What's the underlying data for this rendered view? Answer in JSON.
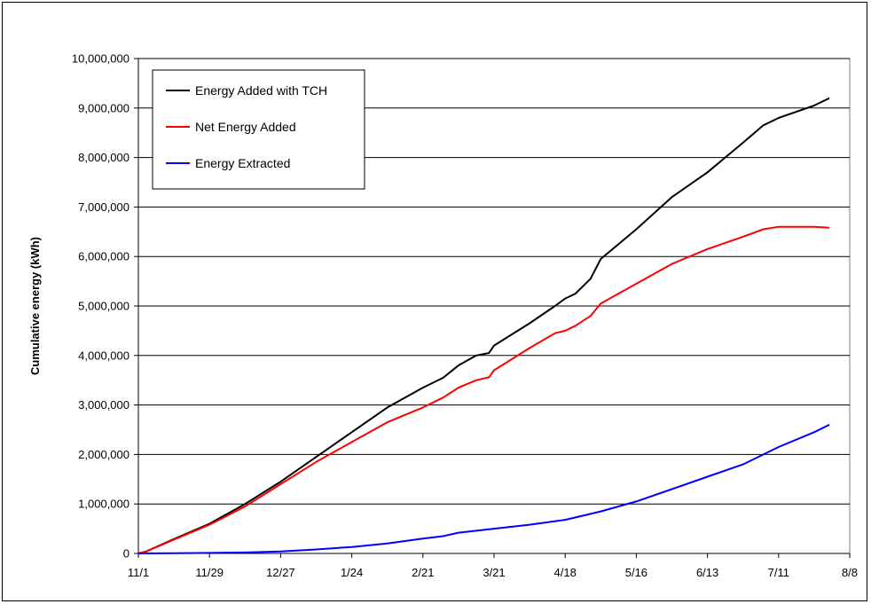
{
  "chart_data": {
    "type": "line",
    "title": "",
    "xlabel": "",
    "ylabel": "Cumulative energy (kWh)",
    "ylim": [
      0,
      10000000
    ],
    "y_ticks": [
      "0",
      "1,000,000",
      "2,000,000",
      "3,000,000",
      "4,000,000",
      "5,000,000",
      "6,000,000",
      "7,000,000",
      "8,000,000",
      "9,000,000",
      "10,000,000"
    ],
    "x_ticks": [
      "11/1",
      "11/29",
      "12/27",
      "1/24",
      "2/21",
      "3/21",
      "4/18",
      "5/16",
      "6/13",
      "7/11",
      "8/8"
    ],
    "grid": "horizontal",
    "legend_position": "top-left",
    "series": [
      {
        "name": "Energy Added with TCH",
        "color": "#000000",
        "x": [
          "11/1",
          "11/4",
          "11/15",
          "11/29",
          "12/13",
          "12/27",
          "1/10",
          "1/24",
          "2/7",
          "2/21",
          "3/1",
          "3/7",
          "3/14",
          "3/19",
          "3/21",
          "4/4",
          "4/14",
          "4/18",
          "4/22",
          "4/28",
          "5/2",
          "5/16",
          "5/30",
          "6/13",
          "6/27",
          "7/5",
          "7/11",
          "7/25",
          "7/31"
        ],
        "values": [
          0,
          40000,
          290000,
          600000,
          1000000,
          1450000,
          1950000,
          2450000,
          2950000,
          3350000,
          3550000,
          3800000,
          4000000,
          4050000,
          4200000,
          4650000,
          5000000,
          5150000,
          5250000,
          5550000,
          5950000,
          6550000,
          7200000,
          7700000,
          8300000,
          8650000,
          8800000,
          9050000,
          9200000
        ]
      },
      {
        "name": "Net Energy Added",
        "color": "#ff0000",
        "x": [
          "11/1",
          "11/4",
          "11/15",
          "11/29",
          "12/13",
          "12/27",
          "1/10",
          "1/24",
          "2/7",
          "2/21",
          "3/1",
          "3/7",
          "3/14",
          "3/19",
          "3/21",
          "4/4",
          "4/14",
          "4/18",
          "4/22",
          "4/28",
          "5/2",
          "5/16",
          "5/30",
          "6/13",
          "6/27",
          "7/5",
          "7/11",
          "7/25",
          "7/31"
        ],
        "values": [
          0,
          40000,
          280000,
          580000,
          950000,
          1400000,
          1850000,
          2250000,
          2650000,
          2950000,
          3150000,
          3350000,
          3500000,
          3560000,
          3700000,
          4150000,
          4450000,
          4500000,
          4600000,
          4800000,
          5050000,
          5450000,
          5850000,
          6150000,
          6400000,
          6550000,
          6600000,
          6600000,
          6580000
        ]
      },
      {
        "name": "Energy Extracted",
        "color": "#0000ff",
        "x": [
          "11/1",
          "11/15",
          "11/29",
          "12/13",
          "12/27",
          "1/10",
          "1/24",
          "2/7",
          "2/21",
          "3/1",
          "3/7",
          "3/21",
          "4/4",
          "4/18",
          "4/28",
          "5/2",
          "5/16",
          "5/30",
          "6/13",
          "6/27",
          "7/11",
          "7/25",
          "7/31"
        ],
        "values": [
          0,
          5000,
          10000,
          20000,
          40000,
          80000,
          130000,
          200000,
          300000,
          350000,
          420000,
          500000,
          580000,
          680000,
          800000,
          850000,
          1050000,
          1300000,
          1550000,
          1800000,
          2150000,
          2450000,
          2600000
        ]
      }
    ]
  }
}
